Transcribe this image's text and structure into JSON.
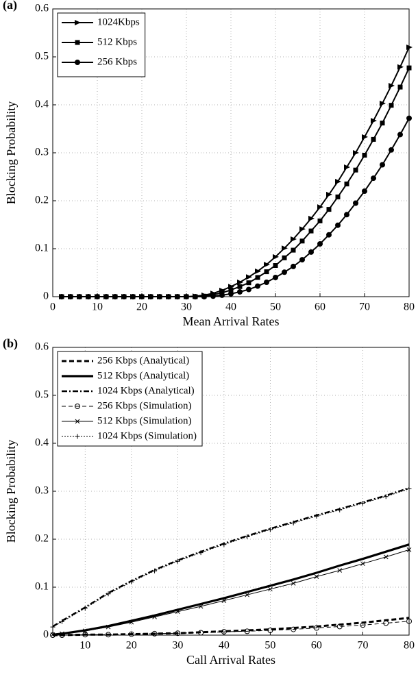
{
  "chart_data": [
    {
      "type": "line",
      "panel": "(a)",
      "x_label": "Mean Arrival Rates",
      "y_label": "Blocking Probability",
      "x": [
        2,
        4,
        6,
        8,
        10,
        12,
        14,
        16,
        18,
        20,
        22,
        24,
        26,
        28,
        30,
        32,
        34,
        36,
        38,
        40,
        42,
        44,
        46,
        48,
        50,
        52,
        54,
        56,
        58,
        60,
        62,
        64,
        66,
        68,
        70,
        72,
        74,
        76,
        78,
        80
      ],
      "series": [
        {
          "name": "1024Kbps",
          "color": "#000000",
          "dash": "solid",
          "marker": "triangle-right",
          "values": [
            0,
            0,
            0,
            0,
            0,
            0,
            0,
            0,
            0,
            0,
            0,
            0,
            0,
            0,
            0,
            0.001,
            0.003,
            0.007,
            0.013,
            0.021,
            0.03,
            0.041,
            0.053,
            0.067,
            0.083,
            0.101,
            0.12,
            0.141,
            0.163,
            0.187,
            0.213,
            0.24,
            0.27,
            0.3,
            0.333,
            0.367,
            0.403,
            0.44,
            0.479,
            0.52
          ]
        },
        {
          "name": "512 Kbps",
          "color": "#000000",
          "dash": "solid",
          "marker": "square",
          "values": [
            0,
            0,
            0,
            0,
            0,
            0,
            0,
            0,
            0,
            0,
            0,
            0,
            0,
            0,
            0,
            0,
            0.001,
            0.004,
            0.008,
            0.014,
            0.021,
            0.029,
            0.04,
            0.052,
            0.065,
            0.081,
            0.097,
            0.116,
            0.137,
            0.158,
            0.182,
            0.208,
            0.235,
            0.264,
            0.295,
            0.328,
            0.362,
            0.399,
            0.437,
            0.477
          ]
        },
        {
          "name": "256 Kbps",
          "color": "#000000",
          "dash": "solid",
          "marker": "circle",
          "values": [
            0,
            0,
            0,
            0,
            0,
            0,
            0,
            0,
            0,
            0,
            0,
            0,
            0,
            0,
            0,
            0,
            0,
            0.001,
            0.003,
            0.006,
            0.01,
            0.015,
            0.022,
            0.03,
            0.04,
            0.051,
            0.063,
            0.077,
            0.093,
            0.11,
            0.129,
            0.149,
            0.171,
            0.195,
            0.22,
            0.247,
            0.275,
            0.306,
            0.338,
            0.372
          ]
        }
      ],
      "xlim": [
        0,
        80
      ],
      "xticks": [
        0,
        10,
        20,
        30,
        40,
        50,
        60,
        70,
        80
      ],
      "ylim": [
        0,
        0.6
      ],
      "yticks": [
        0,
        0.1,
        0.2,
        0.3,
        0.4,
        0.5,
        0.6
      ],
      "grid": true,
      "legend": "upper-left"
    },
    {
      "type": "line",
      "panel": "(b)",
      "x_label": "Call Arrival Rates",
      "y_label": "Blocking Probability",
      "x": [
        3,
        5,
        10,
        15,
        20,
        25,
        30,
        35,
        40,
        45,
        50,
        55,
        60,
        65,
        70,
        75,
        80
      ],
      "series": [
        {
          "name": "256 Kbps (Analytical)",
          "color": "#000000",
          "dash": "dashed",
          "marker": "none",
          "values": [
            0,
            0,
            0.001,
            0.001,
            0.002,
            0.003,
            0.004,
            0.006,
            0.008,
            0.01,
            0.012,
            0.015,
            0.018,
            0.022,
            0.026,
            0.031,
            0.036
          ]
        },
        {
          "name": "512 Kbps (Analytical)",
          "color": "#000000",
          "dash": "solid-thick",
          "marker": "none",
          "values": [
            0.001,
            0.003,
            0.01,
            0.019,
            0.03,
            0.041,
            0.053,
            0.065,
            0.077,
            0.09,
            0.103,
            0.116,
            0.13,
            0.145,
            0.159,
            0.174,
            0.189
          ]
        },
        {
          "name": "1024 Kbps (Analytical)",
          "color": "#000000",
          "dash": "dashdot",
          "marker": "none",
          "values": [
            0.018,
            0.03,
            0.058,
            0.088,
            0.113,
            0.136,
            0.156,
            0.174,
            0.191,
            0.207,
            0.222,
            0.236,
            0.25,
            0.263,
            0.277,
            0.291,
            0.307
          ]
        },
        {
          "name": "256 Kbps (Simulation)",
          "color": "#000000",
          "dash": "dashed-thin",
          "marker": "open-circle",
          "values": [
            0,
            0,
            0.001,
            0.001,
            0.002,
            0.003,
            0.004,
            0.005,
            0.007,
            0.008,
            0.01,
            0.012,
            0.015,
            0.018,
            0.021,
            0.025,
            0.029
          ]
        },
        {
          "name": "512 Kbps (Simulation)",
          "color": "#000000",
          "dash": "solid-thin",
          "marker": "x",
          "values": [
            0.001,
            0.003,
            0.009,
            0.017,
            0.027,
            0.038,
            0.049,
            0.06,
            0.072,
            0.084,
            0.096,
            0.108,
            0.122,
            0.135,
            0.149,
            0.163,
            0.178
          ]
        },
        {
          "name": "1024 Kbps (Simulation)",
          "color": "#000000",
          "dash": "dotted",
          "marker": "plus",
          "values": [
            0.017,
            0.028,
            0.056,
            0.086,
            0.111,
            0.134,
            0.154,
            0.172,
            0.189,
            0.205,
            0.22,
            0.234,
            0.248,
            0.261,
            0.275,
            0.289,
            0.305
          ]
        }
      ],
      "xlim": [
        3,
        80
      ],
      "xticks": [
        10,
        20,
        30,
        40,
        50,
        60,
        70,
        80
      ],
      "ylim": [
        0,
        0.6
      ],
      "yticks": [
        0,
        0.1,
        0.2,
        0.3,
        0.4,
        0.5,
        0.6
      ],
      "grid": true,
      "legend": "upper-left"
    }
  ]
}
